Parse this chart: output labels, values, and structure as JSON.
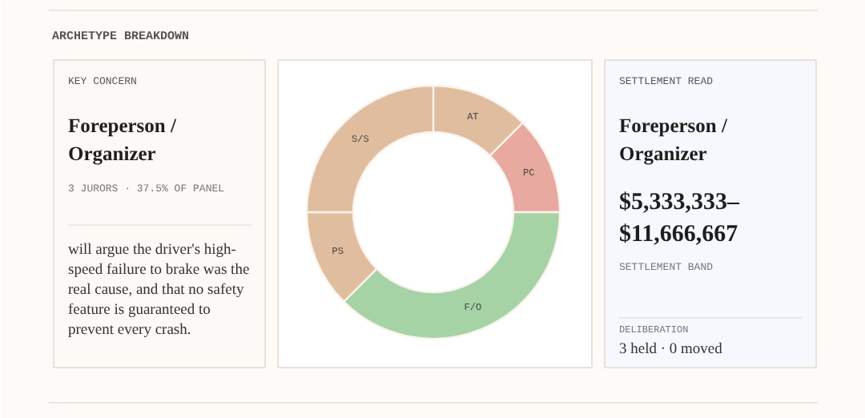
{
  "chart_data": {
    "type": "donut",
    "title": "ARCHETYPE BREAKDOWN",
    "categories": [
      "AT",
      "PC",
      "F/O",
      "PS",
      "S/S"
    ],
    "values": [
      12.5,
      12.5,
      37.5,
      12.5,
      25
    ],
    "colors": [
      "#dfbd9e",
      "#e8a9a0",
      "#a5d3a5",
      "#dfbd9e",
      "#dfbd9e"
    ],
    "annotations": [
      "KEY CONCERN",
      "Foreperson / Organizer",
      "3 JURORS · 37.5% OF PANEL",
      "will argue the driver's high-speed failure to brake was the real cause, and that no safety feature is guaranteed to prevent every crash.",
      "SETTLEMENT READ",
      "Foreperson / Organizer",
      "$5,333,333– $11,666,667",
      "SETTLEMENT BAND",
      "DELIBERATION",
      "3 held · 0 moved"
    ]
  }
}
